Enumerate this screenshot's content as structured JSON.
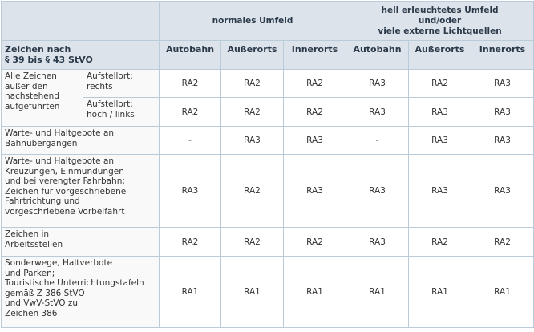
{
  "header": {
    "group_normal": "normales Umfeld",
    "group_bright": "hell erleuchtetes Umfeld\nund/oder\nviele externe Lichtquellen",
    "row_title": "Zeichen nach\n§ 39 bis § 43 StVO",
    "columns": [
      "Autobahn",
      "Außerorts",
      "Innerorts",
      "Autobahn",
      "Außerorts",
      "Innerorts"
    ]
  },
  "rows": [
    {
      "label": "Alle Zeichen\naußer den\nnachstehend\naufgeführten",
      "sub": [
        {
          "label": "Aufstellort:\nrechts",
          "values": [
            "RA2",
            "RA2",
            "RA2",
            "RA3",
            "RA2",
            "RA3"
          ]
        },
        {
          "label": "Aufstellort:\nhoch / links",
          "values": [
            "RA2",
            "RA2",
            "RA2",
            "RA3",
            "RA3",
            "RA3"
          ]
        }
      ]
    },
    {
      "label": "Warte- und Haltgebote an\nBahnübergängen",
      "values": [
        "-",
        "RA3",
        "RA3",
        "-",
        "RA3",
        "RA3"
      ]
    },
    {
      "label": "Warte- und Haltgebote an\nKreuzungen, Einmündungen\nund bei verengter Fahrbahn;\nZeichen für vorgeschriebene\nFahrtrichtung und\nvorgeschriebene Vorbeifahrt",
      "values": [
        "RA3",
        "RA2",
        "RA3",
        "RA3",
        "RA3",
        "RA3"
      ]
    },
    {
      "label": "Zeichen in\nArbeitsstellen",
      "values": [
        "RA2",
        "RA2",
        "RA2",
        "RA3",
        "RA2",
        "RA2"
      ]
    },
    {
      "label": "Sonderwege, Haltverbote\nund Parken;\nTouristische Unterrichtungstafeln\ngemäß Z 386 StVO\nund VwV-StVO zu\nZeichen 386",
      "values": [
        "RA1",
        "RA1",
        "RA1",
        "RA1",
        "RA1",
        "RA1"
      ]
    }
  ]
}
